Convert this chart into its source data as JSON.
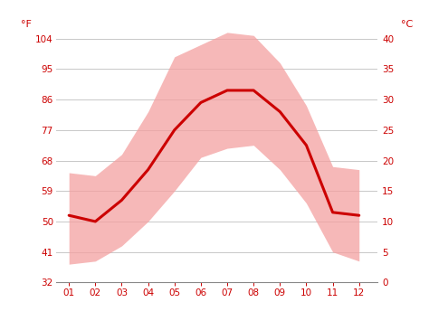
{
  "months": [
    1,
    2,
    3,
    4,
    5,
    6,
    7,
    8,
    9,
    10,
    11,
    12
  ],
  "month_labels": [
    "01",
    "02",
    "03",
    "04",
    "05",
    "06",
    "07",
    "08",
    "09",
    "10",
    "11",
    "12"
  ],
  "mean_temp_c": [
    11.0,
    10.0,
    13.5,
    18.5,
    25.0,
    29.5,
    31.5,
    31.5,
    28.0,
    22.5,
    11.5,
    11.0
  ],
  "max_temp_c": [
    18.0,
    17.5,
    21.0,
    28.0,
    37.0,
    39.0,
    41.0,
    40.5,
    36.0,
    29.0,
    19.0,
    18.5
  ],
  "min_temp_c": [
    3.0,
    3.5,
    6.0,
    10.0,
    15.0,
    20.5,
    22.0,
    22.5,
    18.5,
    13.0,
    5.0,
    3.5
  ],
  "line_color": "#cc0000",
  "band_color": "#f4a0a0",
  "band_alpha": 0.75,
  "grid_color": "#c8c8c8",
  "axis_color": "#cc0000",
  "background_color": "#ffffff",
  "ylim_c": [
    0,
    40
  ],
  "yticks_c": [
    0,
    5,
    10,
    15,
    20,
    25,
    30,
    35,
    40
  ],
  "ytick_labels_f": [
    "32",
    "41",
    "50",
    "59",
    "68",
    "77",
    "86",
    "95",
    "104"
  ],
  "ytick_labels_c": [
    "0",
    "5",
    "10",
    "15",
    "20",
    "25",
    "30",
    "35",
    "40"
  ],
  "ylabel_left": "°F",
  "ylabel_right": "°C",
  "line_width": 2.2,
  "tick_fontsize": 7.5,
  "label_fontsize": 8
}
